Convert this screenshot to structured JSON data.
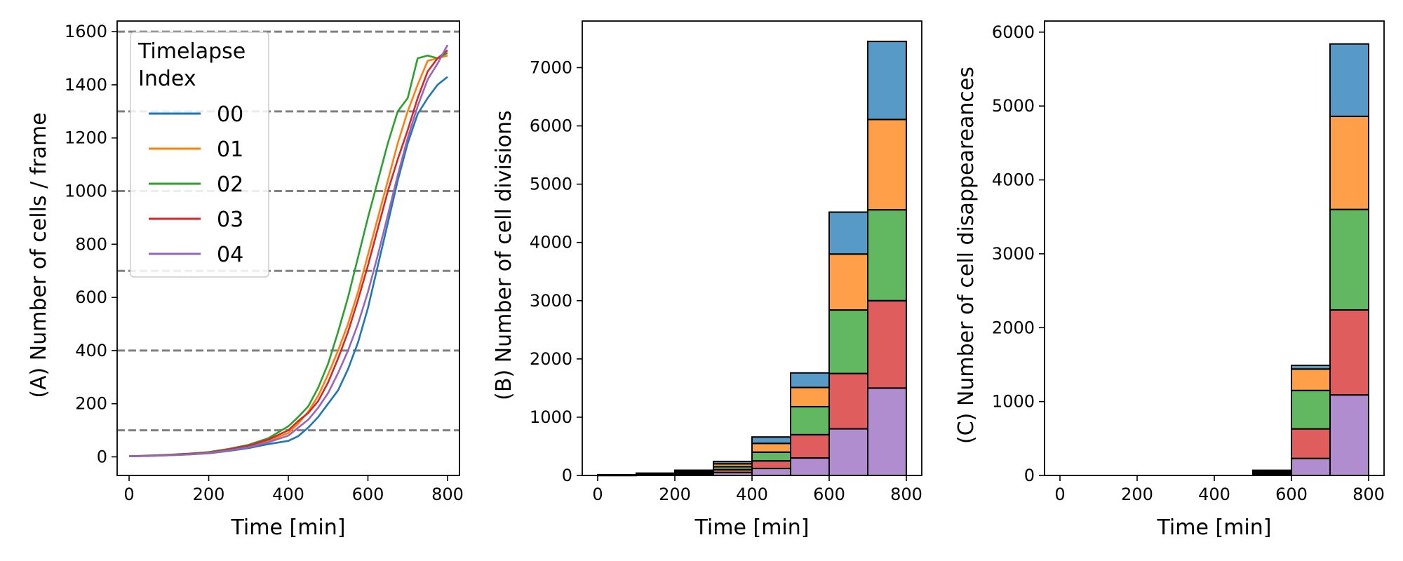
{
  "chart_data": [
    {
      "type": "line",
      "xlabel": "Time [min]",
      "ylabel": "(A) Number of cells / frame",
      "xlim": [
        -30,
        830
      ],
      "ylim": [
        -70,
        1640
      ],
      "xticks": [
        0,
        200,
        400,
        600,
        800
      ],
      "yticks": [
        0,
        200,
        400,
        600,
        800,
        1000,
        1200,
        1400,
        1600
      ],
      "hlines": [
        100,
        400,
        700,
        1000,
        1300,
        1600
      ],
      "legend": {
        "title_lines": [
          "Timelapse",
          "Index"
        ],
        "placement": "upper-left"
      },
      "x": [
        0,
        50,
        100,
        150,
        200,
        250,
        300,
        350,
        400,
        425,
        450,
        475,
        500,
        525,
        550,
        575,
        600,
        625,
        650,
        675,
        700,
        725,
        750,
        775,
        800
      ],
      "series": [
        {
          "name": "00",
          "color": "#1f77b4",
          "values": [
            2,
            4,
            6,
            9,
            13,
            22,
            33,
            48,
            60,
            78,
            110,
            150,
            200,
            250,
            330,
            430,
            560,
            720,
            880,
            1040,
            1180,
            1290,
            1350,
            1400,
            1430
          ]
        },
        {
          "name": "01",
          "color": "#ff7f0e",
          "values": [
            2,
            4,
            6,
            10,
            15,
            26,
            40,
            60,
            90,
            125,
            170,
            230,
            310,
            400,
            500,
            620,
            760,
            900,
            1040,
            1180,
            1300,
            1400,
            1490,
            1500,
            1510
          ]
        },
        {
          "name": "02",
          "color": "#2ca02c",
          "values": [
            2,
            5,
            8,
            12,
            18,
            30,
            45,
            70,
            115,
            150,
            190,
            260,
            350,
            470,
            600,
            750,
            900,
            1040,
            1180,
            1300,
            1350,
            1500,
            1510,
            1500,
            1520
          ]
        },
        {
          "name": "03",
          "color": "#d62728",
          "values": [
            2,
            4,
            7,
            11,
            16,
            28,
            42,
            65,
            100,
            135,
            165,
            210,
            280,
            370,
            470,
            590,
            720,
            860,
            1000,
            1120,
            1230,
            1350,
            1450,
            1500,
            1530
          ]
        },
        {
          "name": "04",
          "color": "#9467bd",
          "values": [
            2,
            3,
            6,
            9,
            14,
            24,
            36,
            55,
            80,
            110,
            140,
            185,
            240,
            315,
            400,
            500,
            620,
            760,
            910,
            1060,
            1200,
            1320,
            1420,
            1480,
            1550
          ]
        }
      ]
    },
    {
      "type": "bar",
      "stacked": true,
      "xlabel": "Time [min]",
      "ylabel": "(B) Number of cell divisions",
      "xlim": [
        -40,
        840
      ],
      "ylim": [
        0,
        7800
      ],
      "xticks": [
        0,
        200,
        400,
        600,
        800
      ],
      "yticks": [
        0,
        1000,
        2000,
        3000,
        4000,
        5000,
        6000,
        7000
      ],
      "bin_edges": [
        0,
        100,
        200,
        300,
        400,
        500,
        600,
        700,
        800
      ],
      "series": [
        {
          "name": "04",
          "color": "#9467bd",
          "values": [
            3,
            8,
            18,
            50,
            120,
            300,
            800,
            1500
          ]
        },
        {
          "name": "03",
          "color": "#d62728",
          "values": [
            3,
            8,
            18,
            50,
            130,
            400,
            950,
            1500
          ]
        },
        {
          "name": "02",
          "color": "#2ca02c",
          "values": [
            3,
            8,
            18,
            50,
            150,
            480,
            1090,
            1560
          ]
        },
        {
          "name": "01",
          "color": "#ff7f0e",
          "values": [
            2,
            8,
            18,
            50,
            150,
            330,
            960,
            1550
          ]
        },
        {
          "name": "00",
          "color": "#1f77b4",
          "values": [
            2,
            8,
            18,
            40,
            110,
            250,
            720,
            1340
          ]
        }
      ]
    },
    {
      "type": "bar",
      "stacked": true,
      "xlabel": "Time [min]",
      "ylabel": "(C) Number of cell disappeareances",
      "xlim": [
        -40,
        840
      ],
      "ylim": [
        0,
        6150
      ],
      "xticks": [
        0,
        200,
        400,
        600,
        800
      ],
      "yticks": [
        0,
        1000,
        2000,
        3000,
        4000,
        5000,
        6000
      ],
      "bin_edges": [
        0,
        100,
        200,
        300,
        400,
        500,
        600,
        700,
        800
      ],
      "series": [
        {
          "name": "04",
          "color": "#9467bd",
          "values": [
            0,
            0,
            0,
            0,
            0,
            15,
            230,
            1090
          ]
        },
        {
          "name": "03",
          "color": "#d62728",
          "values": [
            0,
            0,
            0,
            0,
            0,
            15,
            400,
            1150
          ]
        },
        {
          "name": "02",
          "color": "#2ca02c",
          "values": [
            0,
            0,
            0,
            0,
            0,
            15,
            520,
            1360
          ]
        },
        {
          "name": "01",
          "color": "#ff7f0e",
          "values": [
            0,
            0,
            0,
            0,
            0,
            15,
            290,
            1260
          ]
        },
        {
          "name": "00",
          "color": "#1f77b4",
          "values": [
            0,
            0,
            0,
            0,
            0,
            10,
            50,
            980
          ]
        }
      ]
    }
  ]
}
